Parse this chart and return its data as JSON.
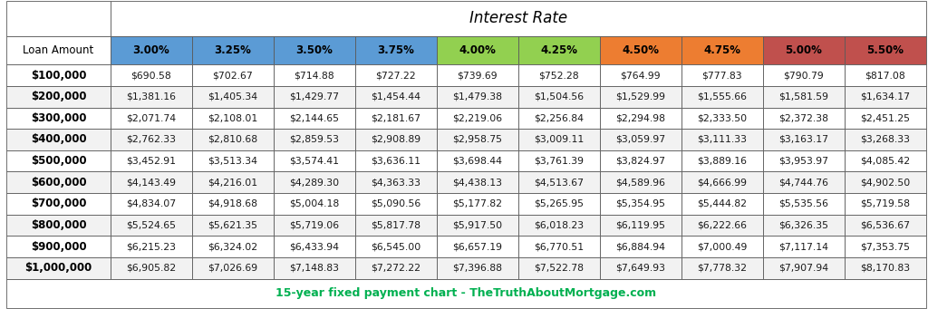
{
  "title": "Interest Rate",
  "footer": "15-year fixed payment chart - TheTruthAboutMortgage.com",
  "col_header": [
    "3.00%",
    "3.25%",
    "3.50%",
    "3.75%",
    "4.00%",
    "4.25%",
    "4.50%",
    "4.75%",
    "5.00%",
    "5.50%"
  ],
  "col_header_colors": [
    "#5b9bd5",
    "#5b9bd5",
    "#5b9bd5",
    "#5b9bd5",
    "#92d050",
    "#92d050",
    "#ed7d31",
    "#ed7d31",
    "#c0504d",
    "#c0504d"
  ],
  "row_header": [
    "$100,000",
    "$200,000",
    "$300,000",
    "$400,000",
    "$500,000",
    "$600,000",
    "$700,000",
    "$800,000",
    "$900,000",
    "$1,000,000"
  ],
  "data": [
    [
      "$690.58",
      "$702.67",
      "$714.88",
      "$727.22",
      "$739.69",
      "$752.28",
      "$764.99",
      "$777.83",
      "$790.79",
      "$817.08"
    ],
    [
      "$1,381.16",
      "$1,405.34",
      "$1,429.77",
      "$1,454.44",
      "$1,479.38",
      "$1,504.56",
      "$1,529.99",
      "$1,555.66",
      "$1,581.59",
      "$1,634.17"
    ],
    [
      "$2,071.74",
      "$2,108.01",
      "$2,144.65",
      "$2,181.67",
      "$2,219.06",
      "$2,256.84",
      "$2,294.98",
      "$2,333.50",
      "$2,372.38",
      "$2,451.25"
    ],
    [
      "$2,762.33",
      "$2,810.68",
      "$2,859.53",
      "$2,908.89",
      "$2,958.75",
      "$3,009.11",
      "$3,059.97",
      "$3,111.33",
      "$3,163.17",
      "$3,268.33"
    ],
    [
      "$3,452.91",
      "$3,513.34",
      "$3,574.41",
      "$3,636.11",
      "$3,698.44",
      "$3,761.39",
      "$3,824.97",
      "$3,889.16",
      "$3,953.97",
      "$4,085.42"
    ],
    [
      "$4,143.49",
      "$4,216.01",
      "$4,289.30",
      "$4,363.33",
      "$4,438.13",
      "$4,513.67",
      "$4,589.96",
      "$4,666.99",
      "$4,744.76",
      "$4,902.50"
    ],
    [
      "$4,834.07",
      "$4,918.68",
      "$5,004.18",
      "$5,090.56",
      "$5,177.82",
      "$5,265.95",
      "$5,354.95",
      "$5,444.82",
      "$5,535.56",
      "$5,719.58"
    ],
    [
      "$5,524.65",
      "$5,621.35",
      "$5,719.06",
      "$5,817.78",
      "$5,917.50",
      "$6,018.23",
      "$6,119.95",
      "$6,222.66",
      "$6,326.35",
      "$6,536.67"
    ],
    [
      "$6,215.23",
      "$6,324.02",
      "$6,433.94",
      "$6,545.00",
      "$6,657.19",
      "$6,770.51",
      "$6,884.94",
      "$7,000.49",
      "$7,117.14",
      "$7,353.75"
    ],
    [
      "$6,905.82",
      "$7,026.69",
      "$7,148.83",
      "$7,272.22",
      "$7,396.88",
      "$7,522.78",
      "$7,649.93",
      "$7,778.32",
      "$7,907.94",
      "$8,170.83"
    ]
  ],
  "row_alt_colors": [
    "#ffffff",
    "#f2f2f2"
  ],
  "border_color": "#5a5a5a",
  "data_text_color": "#1a1a1a",
  "footer_color": "#00b050",
  "title_color": "#000000",
  "col_header_text_color": "#000000",
  "fig_width": 10.24,
  "fig_height": 3.41,
  "dpi": 100
}
